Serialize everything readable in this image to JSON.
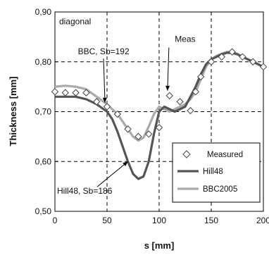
{
  "chart_data": {
    "type": "line",
    "title": "",
    "xlabel": "s [mm]",
    "ylabel": "Thickness [mm]",
    "xlim": [
      0,
      200
    ],
    "ylim": [
      0.5,
      0.9
    ],
    "x_ticks": [
      "0",
      "50",
      "100",
      "150",
      "200"
    ],
    "y_ticks": [
      "0,50",
      "0,60",
      "0,70",
      "0,80",
      "0,90"
    ],
    "grid": "dashed at x=50,100,150 and y=0.6,0.7,0.8",
    "legend_position": "bottom-right",
    "series": [
      {
        "name": "Measured",
        "style": "markers",
        "marker": "diamond",
        "color": "#ffffff",
        "x": [
          0,
          10,
          20,
          30,
          40,
          50,
          60,
          70,
          80,
          90,
          100,
          110,
          120,
          130,
          135,
          140,
          150,
          160,
          170,
          180,
          190,
          200
        ],
        "y": [
          0.74,
          0.738,
          0.738,
          0.738,
          0.72,
          0.71,
          0.695,
          0.665,
          0.65,
          0.655,
          0.668,
          0.732,
          0.72,
          0.702,
          0.74,
          0.77,
          0.8,
          0.81,
          0.82,
          0.81,
          0.8,
          0.79
        ]
      },
      {
        "name": "Hill48",
        "style": "line",
        "color": "#555555",
        "x": [
          0,
          10,
          20,
          30,
          40,
          50,
          55,
          60,
          65,
          70,
          75,
          80,
          85,
          90,
          95,
          100,
          105,
          110,
          115,
          120,
          125,
          130,
          135,
          140,
          145,
          150,
          155,
          160,
          165,
          170,
          175,
          180,
          190,
          200
        ],
        "y": [
          0.73,
          0.73,
          0.73,
          0.725,
          0.715,
          0.7,
          0.685,
          0.66,
          0.63,
          0.6,
          0.575,
          0.565,
          0.57,
          0.6,
          0.655,
          0.7,
          0.71,
          0.705,
          0.7,
          0.705,
          0.71,
          0.73,
          0.75,
          0.775,
          0.795,
          0.805,
          0.81,
          0.815,
          0.818,
          0.818,
          0.815,
          0.81,
          0.8,
          0.79
        ]
      },
      {
        "name": "BBC2005",
        "style": "line",
        "color": "#aaaaaa",
        "x": [
          0,
          10,
          20,
          30,
          40,
          50,
          55,
          60,
          65,
          70,
          75,
          80,
          85,
          90,
          95,
          100,
          105,
          110,
          115,
          120,
          125,
          130,
          135,
          140,
          145,
          150,
          155,
          160,
          165,
          170,
          175,
          180,
          190,
          200
        ],
        "y": [
          0.75,
          0.752,
          0.75,
          0.745,
          0.73,
          0.715,
          0.705,
          0.695,
          0.68,
          0.665,
          0.65,
          0.642,
          0.648,
          0.67,
          0.695,
          0.71,
          0.705,
          0.7,
          0.705,
          0.71,
          0.715,
          0.725,
          0.74,
          0.765,
          0.79,
          0.805,
          0.812,
          0.816,
          0.82,
          0.82,
          0.816,
          0.81,
          0.8,
          0.79
        ]
      }
    ],
    "annotations": [
      {
        "id": "diagonal",
        "text": "diagonal",
        "x": 2,
        "y": 0.875
      },
      {
        "id": "bbc",
        "text": "BBC, Sb=192",
        "x": 20,
        "y": 0.815,
        "arrow_to": [
          48,
          0.718
        ]
      },
      {
        "id": "meas",
        "text": "Meas",
        "x": 113,
        "y": 0.84,
        "arrow_to": [
          108,
          0.742
        ]
      },
      {
        "id": "hill",
        "text": "Hill48, Sb=186",
        "x": 0,
        "y": 0.535,
        "arrow_to": [
          70,
          0.6
        ]
      }
    ]
  }
}
